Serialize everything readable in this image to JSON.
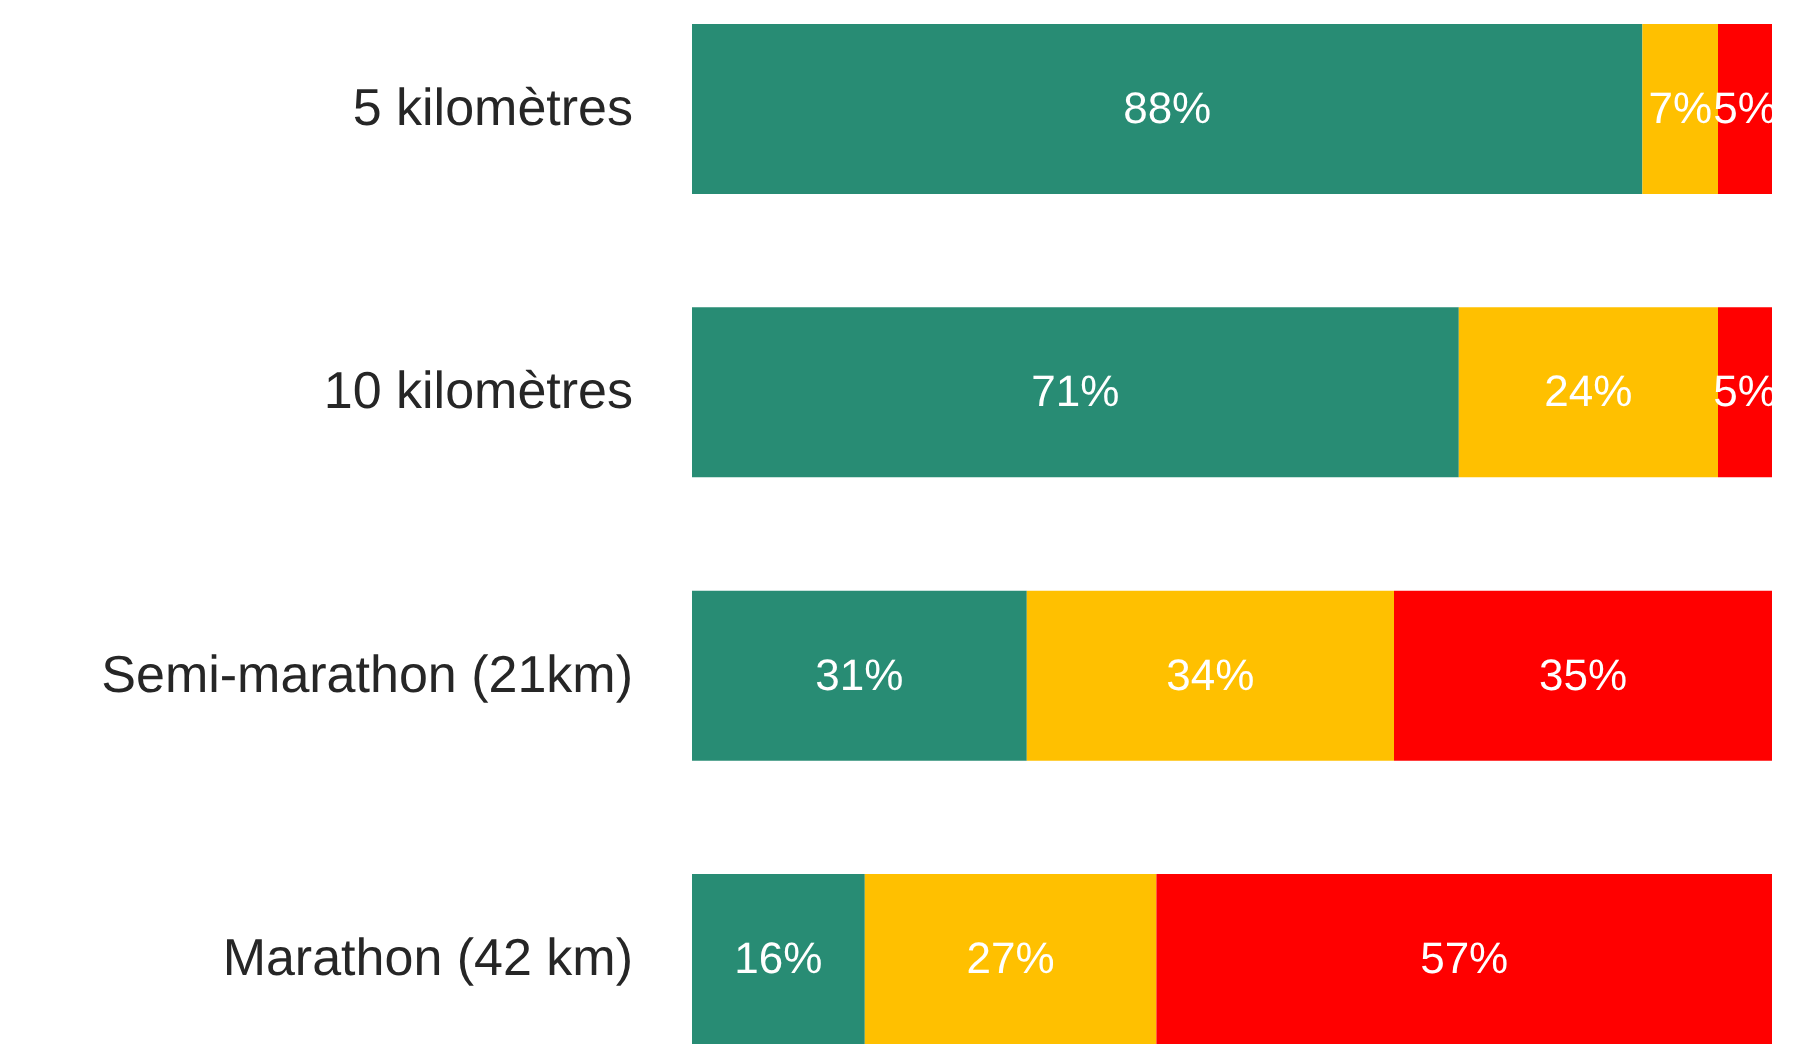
{
  "chart_data": {
    "type": "bar",
    "orientation": "horizontal",
    "stacked": true,
    "categories": [
      "5 kilomètres",
      "10 kilomètres",
      "Semi-marathon (21km)",
      "Marathon (42 km)"
    ],
    "series": [
      {
        "color": "#288c74",
        "values": [
          88,
          71,
          31,
          16
        ],
        "value_labels": [
          "88%",
          "71%",
          "31%",
          "16%"
        ]
      },
      {
        "color": "#ffc000",
        "values": [
          7,
          24,
          34,
          27
        ],
        "value_labels": [
          "7%",
          "24%",
          "34%",
          "27%"
        ]
      },
      {
        "color": "#ff0000",
        "values": [
          5,
          5,
          35,
          57
        ],
        "value_labels": [
          "5%",
          "5%",
          "35%",
          "57%"
        ]
      }
    ],
    "xlim": [
      0,
      100
    ],
    "tick_labels": "y"
  }
}
